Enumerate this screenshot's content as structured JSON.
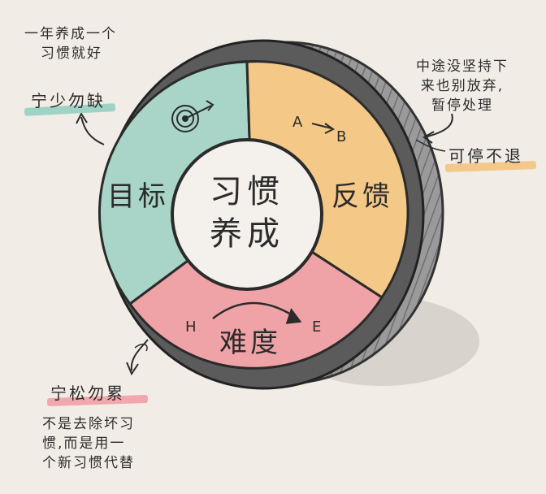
{
  "notes": {
    "top_left": [
      "一年养成一个",
      "习惯就好"
    ],
    "top_left_label": "宁少勿缺",
    "top_right": [
      "中途没坚持下",
      "来也别放弃,",
      "暂停处理"
    ],
    "top_right_label": "可停不退",
    "bottom_left_label": "宁松勿累",
    "bottom_left": [
      "不是去除坏习",
      "惯,而是用一",
      "个新习惯代替"
    ]
  },
  "wheel": {
    "center_lines": [
      "习惯",
      "养成"
    ],
    "goal_label": "目标",
    "feedback_label": "反馈",
    "feedback_arrow": {
      "from": "A",
      "to": "B"
    },
    "difficulty_label": "难度",
    "difficulty_arrow": {
      "from": "H",
      "to": "E"
    }
  },
  "colors": {
    "background": "#f1ede6",
    "goal": "#a8d5c7",
    "feedback": "#f4c987",
    "difficulty": "#f0a3a6",
    "rim": "#8c8c8c",
    "center": "#f4f1ec"
  },
  "icons": [
    "target-icon",
    "arrow-icon"
  ]
}
